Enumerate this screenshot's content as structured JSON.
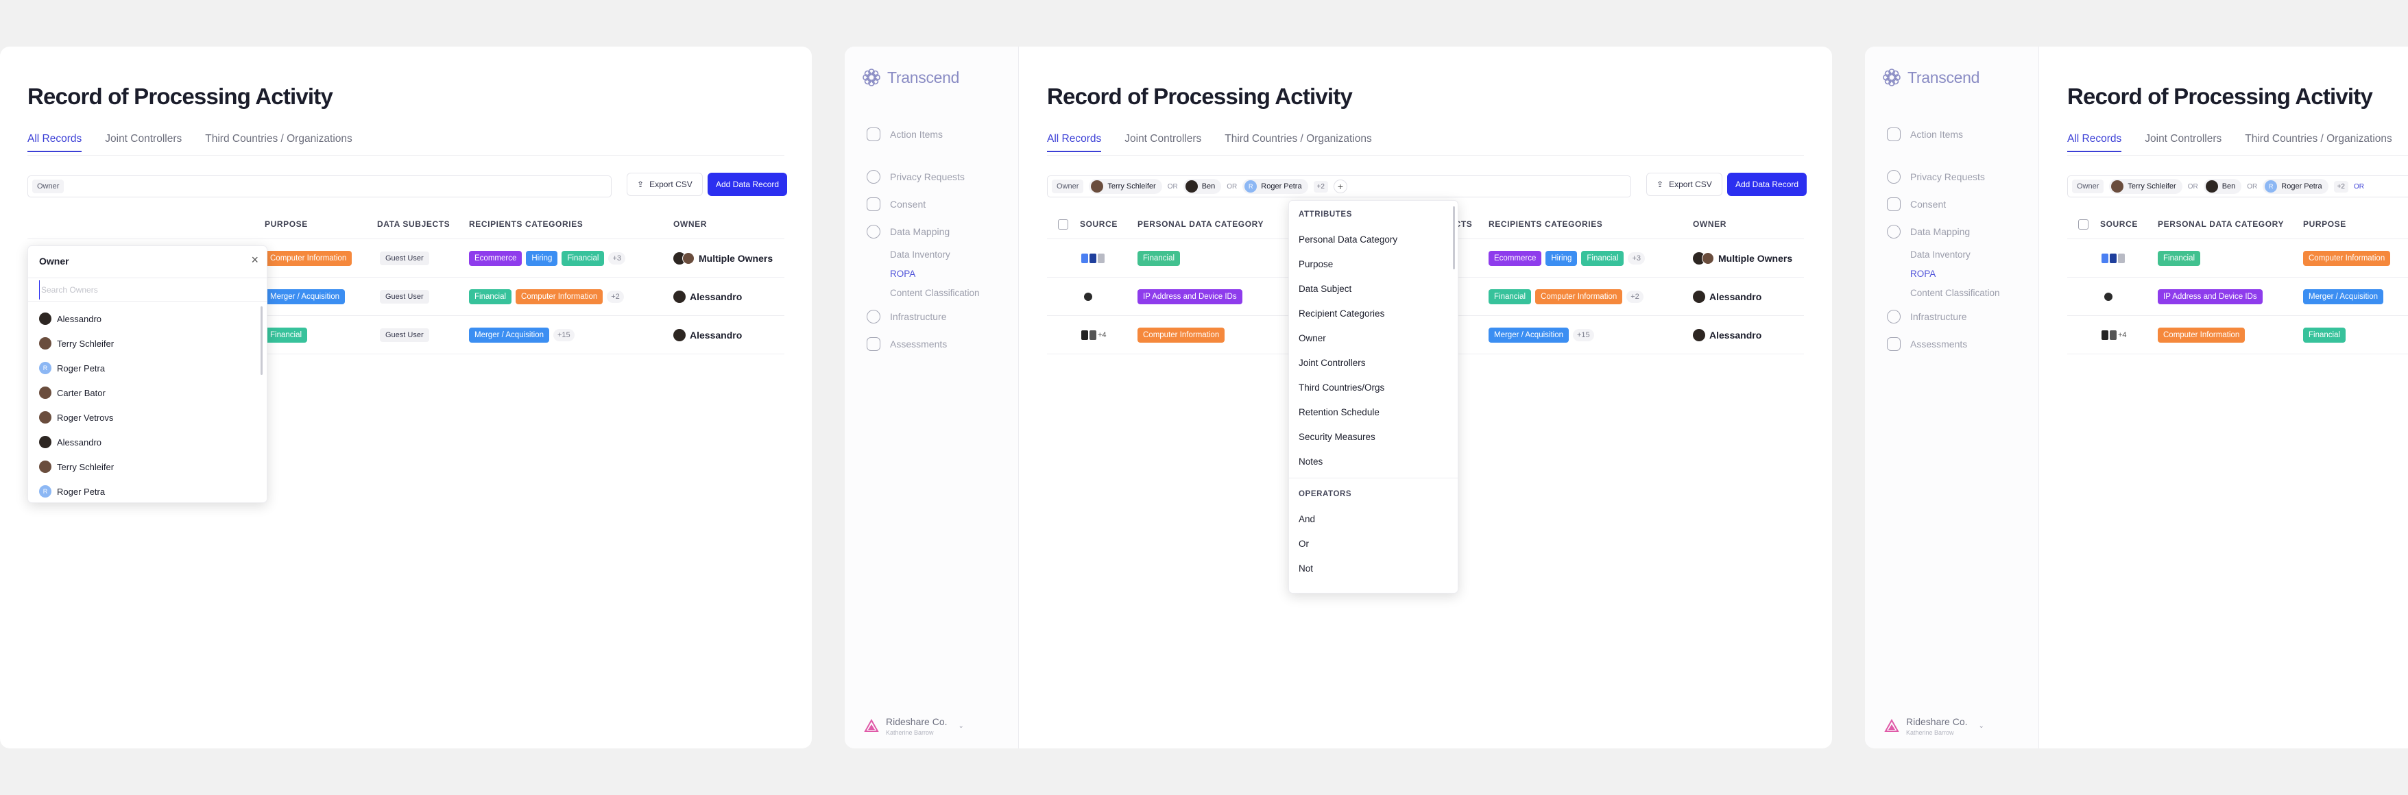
{
  "page_title": "Record of Processing Activity",
  "tabs": [
    "All Records",
    "Joint Controllers",
    "Third Countries / Organizations"
  ],
  "filter_label": "Owner",
  "filter_people": [
    "Terry Schleifer",
    "Ben",
    "Roger Petra"
  ],
  "filter_or": "OR",
  "filter_more": "+2",
  "export_label": "Export CSV",
  "add_label": "Add Data Record",
  "logo_text": "Transcend",
  "nav": {
    "action_items": "Action Items",
    "privacy_requests": "Privacy Requests",
    "consent": "Consent",
    "data_mapping": "Data Mapping",
    "data_inventory": "Data Inventory",
    "ropa": "ROPA",
    "content_classification": "Content Classification",
    "infrastructure": "Infrastructure",
    "assessments": "Assessments"
  },
  "org": {
    "name": "Rideshare Co.",
    "user": "Katherine Barrow"
  },
  "columns": {
    "source": "SOURCE",
    "pdc": "PERSONAL DATA CATEGORY",
    "purpose": "PURPOSE",
    "subjects": "DATA SUBJECTS",
    "recipients": "RECIPIENTS CATEGORIES",
    "owner": "OWNER",
    "subjects_clipped": "ECTS"
  },
  "rows": [
    {
      "source_more": "",
      "pdc": "Financial",
      "purpose": "Computer Information",
      "subject": "Guest User",
      "rec": [
        "Ecommerce",
        "Hiring",
        "Financial"
      ],
      "rec_more": "+3",
      "owner": "Multiple Owners"
    },
    {
      "source_more": "",
      "pdc": "IP Address and Device IDs",
      "purpose": "Merger / Acquisition",
      "subject": "Guest User",
      "rec": [
        "Financial",
        "Computer Information"
      ],
      "rec_more": "+2",
      "owner": "Alessandro"
    },
    {
      "source_more": "+4",
      "pdc": "Computer Information",
      "purpose": "Financial",
      "subject": "Guest User",
      "rec": [
        "Merger / Acquisition"
      ],
      "rec_more": "+15",
      "owner": "Alessandro"
    }
  ],
  "owner_dropdown": {
    "title": "Owner",
    "placeholder": "Search Owners",
    "items": [
      "Alessandro",
      "Terry Schleifer",
      "Roger Petra",
      "Carter Bator",
      "Roger Vetrovs",
      "Alessandro",
      "Terry Schleifer",
      "Roger Petra"
    ]
  },
  "attr_dropdown": {
    "attributes_title": "ATTRIBUTES",
    "attributes": [
      "Personal Data Category",
      "Purpose",
      "Data Subject",
      "Recipient Categories",
      "Owner",
      "Joint Controllers",
      "Third Countries/Orgs",
      "Retention Schedule",
      "Security Measures",
      "Notes"
    ],
    "operators_title": "OPERATORS",
    "operators": [
      "And",
      "Or",
      "Not"
    ]
  },
  "colors": {
    "accent": "#2b2ff0",
    "orange": "#f5883c",
    "blue": "#3b8ef2",
    "teal": "#37c29b",
    "purple": "#8e3cec"
  }
}
